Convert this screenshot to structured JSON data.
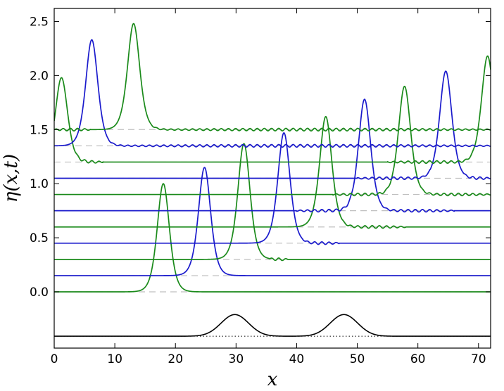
{
  "chart_data": {
    "type": "line",
    "title": "",
    "xlabel": "x",
    "ylabel": "η(x,t)",
    "xlim": [
      0,
      72
    ],
    "ylim": [
      -0.52,
      2.62
    ],
    "xticks": [
      0,
      10,
      20,
      30,
      40,
      50,
      60,
      70
    ],
    "yticks": [
      0.0,
      0.5,
      1.0,
      1.5,
      2.0,
      2.5
    ],
    "grid": false,
    "colors": {
      "green": "#1a8a1a",
      "blue": "#1a1acc",
      "black": "#000000",
      "dashed": "#bfbfbf"
    },
    "series": [
      {
        "offset": 0.0,
        "color": "green",
        "peaks": [
          [
            18.0,
            1.0
          ]
        ],
        "ripples": []
      },
      {
        "offset": 0.15,
        "color": "blue",
        "peaks": [
          [
            24.8,
            1.0
          ]
        ],
        "ripples": []
      },
      {
        "offset": 0.3,
        "color": "green",
        "peaks": [
          [
            31.3,
            1.07
          ]
        ],
        "ripples": [
          [
            35.5,
            38.5
          ]
        ]
      },
      {
        "offset": 0.45,
        "color": "blue",
        "peaks": [
          [
            37.9,
            1.02
          ]
        ],
        "ripples": [
          [
            41.0,
            47.0
          ]
        ]
      },
      {
        "offset": 0.6,
        "color": "green",
        "peaks": [
          [
            44.8,
            1.02
          ]
        ],
        "ripples": [
          [
            47.5,
            58.0
          ]
        ]
      },
      {
        "offset": 0.75,
        "color": "blue",
        "peaks": [
          [
            51.2,
            1.03
          ]
        ],
        "ripples": [
          [
            40.0,
            50.5
          ],
          [
            54.0,
            66.0
          ]
        ]
      },
      {
        "offset": 0.9,
        "color": "green",
        "peaks": [
          [
            57.8,
            1.0
          ]
        ],
        "ripples": [
          [
            46.0,
            56.0
          ],
          [
            60.5,
            72.0
          ]
        ]
      },
      {
        "offset": 1.05,
        "color": "blue",
        "peaks": [
          [
            64.6,
            0.99
          ]
        ],
        "ripples": [
          [
            50.0,
            62.0
          ],
          [
            67.5,
            72.0
          ]
        ]
      },
      {
        "offset": 1.2,
        "color": "green",
        "peaks": [
          [
            71.5,
            0.98
          ],
          [
            1.2,
            0.78
          ]
        ],
        "ripples": [
          [
            55.0,
            70.0
          ],
          [
            3.0,
            8.0
          ]
        ]
      },
      {
        "offset": 1.35,
        "color": "blue",
        "peaks": [
          [
            6.2,
            0.98
          ]
        ],
        "ripples": [
          [
            9.0,
            72.0
          ]
        ]
      },
      {
        "offset": 1.5,
        "color": "green",
        "peaks": [
          [
            13.1,
            0.98
          ]
        ],
        "ripples": [
          [
            0.0,
            6.0
          ],
          [
            16.0,
            72.0
          ]
        ]
      }
    ],
    "bottom_profile": {
      "baseline": -0.41,
      "color": "black",
      "bumps": [
        [
          29.8,
          0.2
        ],
        [
          47.8,
          0.2
        ]
      ]
    }
  }
}
